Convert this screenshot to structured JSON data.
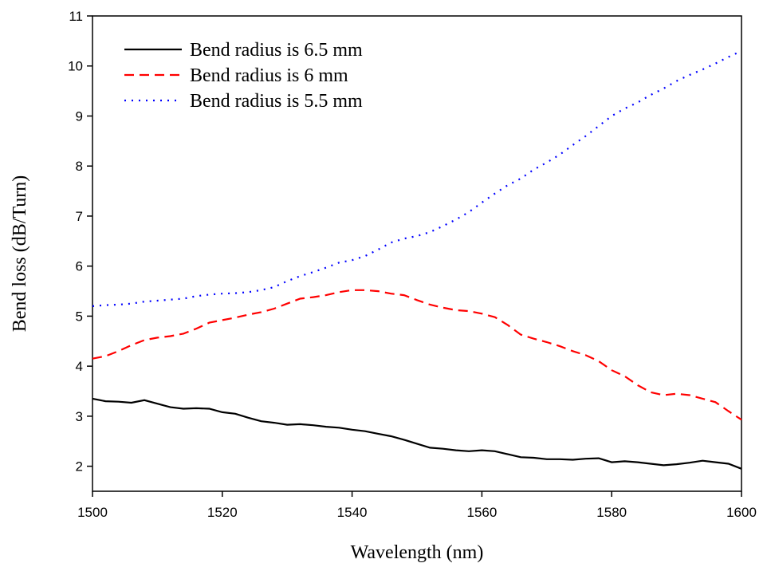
{
  "chart_data": {
    "type": "line",
    "xlabel": "Wavelength (nm)",
    "ylabel": "Bend loss (dB/Turn)",
    "x": [
      1500,
      1502,
      1504,
      1506,
      1508,
      1510,
      1512,
      1514,
      1516,
      1518,
      1520,
      1522,
      1524,
      1526,
      1528,
      1530,
      1532,
      1534,
      1536,
      1538,
      1540,
      1542,
      1544,
      1546,
      1548,
      1550,
      1552,
      1554,
      1556,
      1558,
      1560,
      1562,
      1564,
      1566,
      1568,
      1570,
      1572,
      1574,
      1576,
      1578,
      1580,
      1582,
      1584,
      1586,
      1588,
      1590,
      1592,
      1594,
      1596,
      1598,
      1600
    ],
    "series": [
      {
        "name": "Bend radius is 6.5 mm",
        "color": "#000000",
        "linestyle": "solid",
        "values": [
          3.35,
          3.3,
          3.29,
          3.27,
          3.32,
          3.25,
          3.18,
          3.15,
          3.16,
          3.15,
          3.08,
          3.05,
          2.97,
          2.9,
          2.87,
          2.83,
          2.84,
          2.82,
          2.79,
          2.77,
          2.73,
          2.7,
          2.65,
          2.6,
          2.53,
          2.45,
          2.37,
          2.35,
          2.32,
          2.3,
          2.32,
          2.3,
          2.24,
          2.18,
          2.17,
          2.14,
          2.14,
          2.13,
          2.15,
          2.16,
          2.08,
          2.1,
          2.08,
          2.05,
          2.02,
          2.04,
          2.07,
          2.11,
          2.08,
          2.05,
          1.95
        ]
      },
      {
        "name": "Bend radius is 6 mm",
        "color": "#ff0000",
        "linestyle": "dashed",
        "values": [
          4.15,
          4.2,
          4.3,
          4.42,
          4.52,
          4.57,
          4.6,
          4.65,
          4.75,
          4.87,
          4.92,
          4.97,
          5.03,
          5.08,
          5.15,
          5.25,
          5.35,
          5.38,
          5.42,
          5.48,
          5.52,
          5.52,
          5.5,
          5.45,
          5.42,
          5.32,
          5.23,
          5.17,
          5.12,
          5.1,
          5.05,
          4.98,
          4.82,
          4.63,
          4.55,
          4.48,
          4.4,
          4.3,
          4.22,
          4.1,
          3.92,
          3.8,
          3.62,
          3.48,
          3.42,
          3.45,
          3.42,
          3.35,
          3.28,
          3.1,
          2.93
        ]
      },
      {
        "name": "Bend radius is 5.5 mm",
        "color": "#0000ff",
        "linestyle": "dotted",
        "values": [
          5.2,
          5.22,
          5.23,
          5.25,
          5.29,
          5.31,
          5.33,
          5.35,
          5.4,
          5.43,
          5.45,
          5.46,
          5.48,
          5.52,
          5.58,
          5.7,
          5.8,
          5.88,
          5.97,
          6.07,
          6.12,
          6.2,
          6.33,
          6.47,
          6.55,
          6.6,
          6.68,
          6.8,
          6.93,
          7.08,
          7.27,
          7.45,
          7.62,
          7.75,
          7.93,
          8.07,
          8.23,
          8.42,
          8.6,
          8.8,
          9.0,
          9.15,
          9.27,
          9.42,
          9.55,
          9.7,
          9.82,
          9.93,
          10.05,
          10.18,
          10.3
        ]
      }
    ],
    "xlim": [
      1500,
      1600
    ],
    "xticks": [
      1500,
      1520,
      1540,
      1560,
      1580,
      1600
    ],
    "ylim": [
      1.5,
      11
    ],
    "yticks": [
      2,
      3,
      4,
      5,
      6,
      7,
      8,
      9,
      10,
      11
    ],
    "legend": "upper left"
  }
}
